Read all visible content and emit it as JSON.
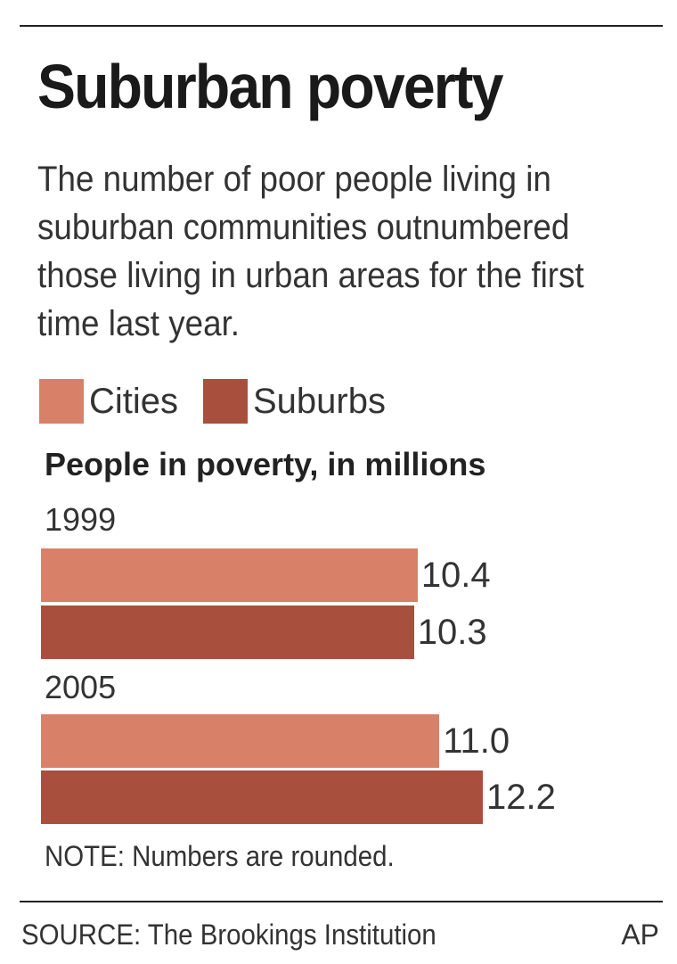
{
  "title": "Suburban poverty",
  "subtitle": "The number of poor people living in suburban communities outnumbered those living in urban areas for the first time last year.",
  "colors": {
    "cities": "#d98068",
    "suburbs": "#a84f3d"
  },
  "chart_data": {
    "type": "bar",
    "orientation": "horizontal",
    "xlabel": "People in poverty, in millions",
    "categories": [
      "1999",
      "2005"
    ],
    "series": [
      {
        "name": "Cities",
        "values": [
          10.4,
          11.0
        ],
        "labels": [
          "10.4",
          "11.0"
        ]
      },
      {
        "name": "Suburbs",
        "values": [
          10.3,
          12.2
        ],
        "labels": [
          "10.3",
          "12.2"
        ]
      }
    ],
    "xlim": [
      0,
      12.2
    ],
    "legend": "top-left"
  },
  "note": "NOTE: Numbers are rounded.",
  "source": "SOURCE: The Brookings Institution",
  "credit": "AP"
}
